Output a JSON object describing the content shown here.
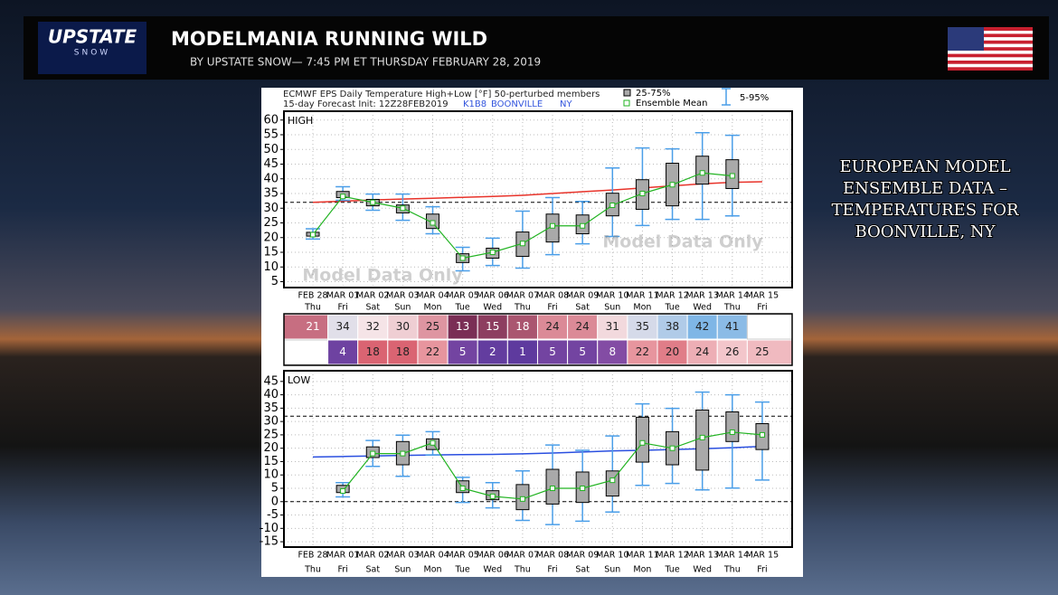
{
  "header": {
    "logo": "UPSTATE",
    "logo_sub": "SNOW",
    "title": "MODELMANIA RUNNING WILD",
    "byline": "BY UPSTATE SNOW— 7:45 PM ET THURSDAY FEBRUARY 28, 2019"
  },
  "sidebar": {
    "lines": [
      "EUROPEAN MODEL",
      "ENSEMBLE DATA –",
      "TEMPERATURES FOR",
      "BOONVILLE, NY"
    ]
  },
  "panel": {
    "title": "ECMWF EPS Daily Temperature High+Low [°F] 50-perturbed members",
    "init": "15-day Forecast Init: 12Z28FEB2019",
    "station": "K1B8",
    "city": "BOONVILLE",
    "state": "NY",
    "legend": {
      "box": "25-75%",
      "mean": "Ensemble Mean",
      "whisker": "5-95%"
    },
    "watermark": "Model Data Only"
  },
  "chart_data": [
    {
      "type": "box",
      "title": "HIGH",
      "categories": [
        "FEB 28",
        "MAR 01",
        "MAR 02",
        "MAR 03",
        "MAR 04",
        "MAR 05",
        "MAR 06",
        "MAR 07",
        "MAR 08",
        "MAR 09",
        "MAR 10",
        "MAR 11",
        "MAR 12",
        "MAR 13",
        "MAR 14",
        "MAR 15"
      ],
      "weekdays": [
        "Thu",
        "Fri",
        "Sat",
        "Sun",
        "Mon",
        "Tue",
        "Wed",
        "Thu",
        "Fri",
        "Sat",
        "Sun",
        "Mon",
        "Tue",
        "Wed",
        "Thu",
        "Fri"
      ],
      "whisker_low": [
        19.5,
        32.7,
        29.3,
        25.9,
        21.3,
        8.7,
        10.5,
        9.6,
        14.2,
        17.9,
        20.4,
        24.1,
        26.2,
        26.2,
        27.4,
        null
      ],
      "q1": [
        20.5,
        33.6,
        30.8,
        28.4,
        23.1,
        11.5,
        13,
        13.6,
        18.5,
        21.3,
        27.4,
        29.6,
        30.8,
        38.2,
        36.7,
        null
      ],
      "q3": [
        21.8,
        35.7,
        33,
        31.1,
        28,
        14.5,
        16.4,
        21.9,
        28,
        27.7,
        35.1,
        39.7,
        45.3,
        47.7,
        46.5,
        null
      ],
      "whisker_high": [
        23,
        37.3,
        34.8,
        34.8,
        30.5,
        16.7,
        19.8,
        29,
        33.6,
        32.3,
        43.7,
        50.5,
        50.2,
        55.7,
        54.8,
        null
      ],
      "mean": [
        21,
        34,
        32,
        30,
        25,
        13,
        15,
        18,
        24,
        24,
        31,
        35,
        38,
        42,
        41,
        null
      ],
      "climatology": [
        32,
        32.4,
        32.8,
        33.1,
        33.4,
        33.7,
        34,
        34.4,
        35,
        35.6,
        36.2,
        36.9,
        37.6,
        38.3,
        38.8,
        39
      ],
      "climatology_color": "#e8332a",
      "ref_lines": [
        32
      ],
      "ylim": [
        3,
        63
      ],
      "yticks": [
        5,
        10,
        15,
        20,
        25,
        30,
        35,
        40,
        45,
        50,
        55,
        60
      ],
      "box_color": "#a9a9a9",
      "mean_color": "#22b322",
      "whisker_color": "#4a9ee8",
      "table_colors": [
        "#7a2e55",
        "#d77b8a",
        "#f6e8ea",
        "#7fb6e6"
      ]
    },
    {
      "type": "box",
      "title": "LOW",
      "categories": [
        "FEB 28",
        "MAR 01",
        "MAR 02",
        "MAR 03",
        "MAR 04",
        "MAR 05",
        "MAR 06",
        "MAR 07",
        "MAR 08",
        "MAR 09",
        "MAR 10",
        "MAR 11",
        "MAR 12",
        "MAR 13",
        "MAR 14",
        "MAR 15"
      ],
      "weekdays": [
        "Thu",
        "Fri",
        "Sat",
        "Sun",
        "Mon",
        "Tue",
        "Wed",
        "Thu",
        "Fri",
        "Sat",
        "Sun",
        "Mon",
        "Tue",
        "Wed",
        "Thu",
        "Fri"
      ],
      "whisker_low": [
        null,
        1.8,
        13.2,
        9.5,
        17.5,
        -0.3,
        -2.3,
        -7,
        -8.6,
        -7.3,
        -3.9,
        6.1,
        6.8,
        4.4,
        5.1,
        8.1
      ],
      "q1": [
        null,
        3.4,
        16.5,
        13.8,
        19.5,
        3.4,
        0.7,
        -3,
        -0.9,
        -0.3,
        2.1,
        14.8,
        13.8,
        11.8,
        22.5,
        19.5
      ],
      "q3": [
        null,
        6.1,
        20.5,
        22.5,
        23.5,
        7.8,
        4.1,
        6.4,
        12.1,
        11.1,
        11.5,
        31.6,
        26.2,
        34.3,
        33.6,
        29.2
      ],
      "whisker_high": [
        null,
        7.1,
        22.9,
        24.9,
        26.2,
        9.1,
        7.1,
        11.5,
        21.2,
        19.2,
        24.6,
        36.6,
        34.9,
        41,
        40,
        37.3
      ],
      "mean": [
        null,
        4,
        18,
        18,
        22,
        5,
        2,
        1,
        5,
        5,
        8,
        22,
        20,
        24,
        26,
        25
      ],
      "climatology": [
        16.7,
        16.9,
        17.1,
        17.3,
        17.5,
        17.6,
        17.7,
        17.9,
        18.2,
        18.6,
        19,
        19.2,
        19.5,
        19.8,
        20.2,
        20.7
      ],
      "climatology_color": "#2a4fe0",
      "ref_lines": [
        32,
        0
      ],
      "ylim": [
        -17,
        49
      ],
      "yticks": [
        -15,
        -10,
        -5,
        0,
        5,
        10,
        15,
        20,
        25,
        30,
        35,
        40,
        45
      ],
      "box_color": "#a9a9a9",
      "mean_color": "#22b322",
      "whisker_color": "#4a9ee8",
      "table_colors": [
        "#5e3a9e",
        "#8a4fa5",
        "#d9606e",
        "#f3c6cb"
      ]
    }
  ]
}
